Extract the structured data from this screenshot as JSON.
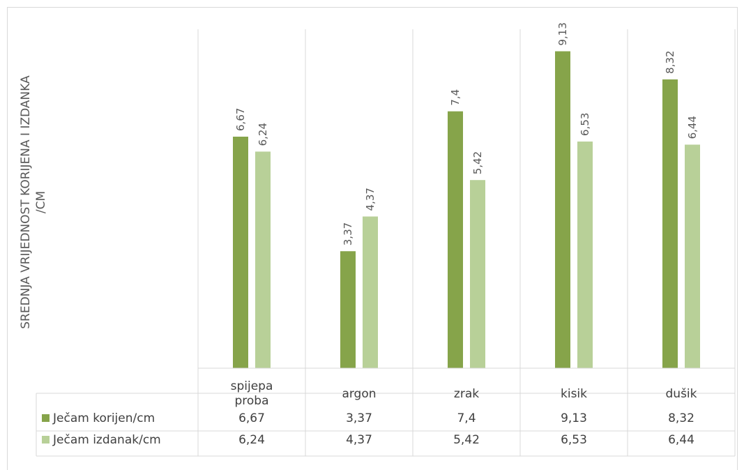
{
  "chart_data": {
    "type": "bar",
    "ylabel": "SREDNJA VRIJEDNOST KORIJENA I IZDANKA /CM",
    "ylabel_lines": [
      "SREDNJA VRIJEDNOST KORIJENA I IZDANKA",
      "/CM"
    ],
    "categories": [
      "spijepa proba",
      "argon",
      "zrak",
      "kisik",
      "dušik"
    ],
    "category_lines": [
      [
        "spijepa",
        "proba"
      ],
      [
        "argon"
      ],
      [
        "zrak"
      ],
      [
        "kisik"
      ],
      [
        "dušik"
      ]
    ],
    "series": [
      {
        "name": "Ječam korijen/cm",
        "values": [
          6.67,
          3.37,
          7.4,
          9.13,
          8.32
        ],
        "labels": [
          "6,67",
          "3,37",
          "7,4",
          "9,13",
          "8,32"
        ],
        "color": "#86a44a"
      },
      {
        "name": "Ječam izdanak/cm",
        "values": [
          6.24,
          4.37,
          5.42,
          6.53,
          6.44
        ],
        "labels": [
          "6,24",
          "4,37",
          "5,42",
          "6,53",
          "6,44"
        ],
        "color": "#b8d098"
      }
    ],
    "ylim": [
      0,
      10
    ],
    "grid": false,
    "legend": "data-table"
  }
}
